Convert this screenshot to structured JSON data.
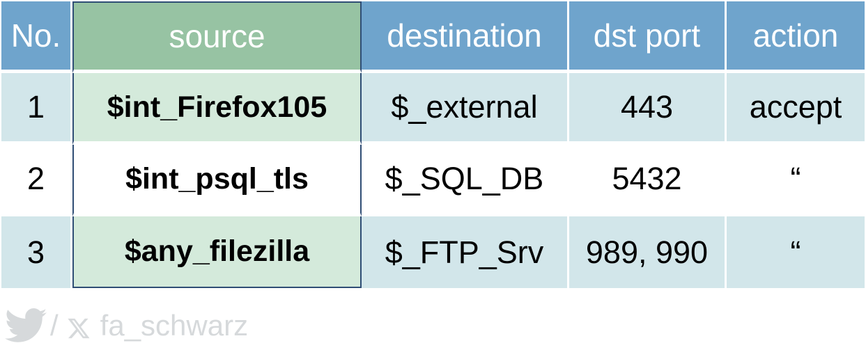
{
  "table": {
    "headers": [
      "No.",
      "source",
      "destination",
      "dst port",
      "action"
    ],
    "rows": [
      {
        "no": "1",
        "source": "$int_Firefox105",
        "destination": "$_external",
        "port": "443",
        "action": "accept"
      },
      {
        "no": "2",
        "source": "$int_psql_tls",
        "destination": "$_SQL_DB",
        "port": "5432",
        "action": "“"
      },
      {
        "no": "3",
        "source": "$any_filezilla",
        "destination": "$_FTP_Srv",
        "port": "989, 990",
        "action": "“"
      }
    ]
  },
  "footer": {
    "slash": "/",
    "handle": "fa_schwarz",
    "icons": [
      "twitter-bird-icon",
      "x-logo-icon"
    ]
  },
  "colors": {
    "header_blue": "#6fa4cc",
    "header_green": "#97c3a3",
    "row_blue": "#d2e6ea",
    "row_green": "#d4eadb",
    "source_border": "#2f4d75",
    "footer_gray": "#d6d9db"
  }
}
